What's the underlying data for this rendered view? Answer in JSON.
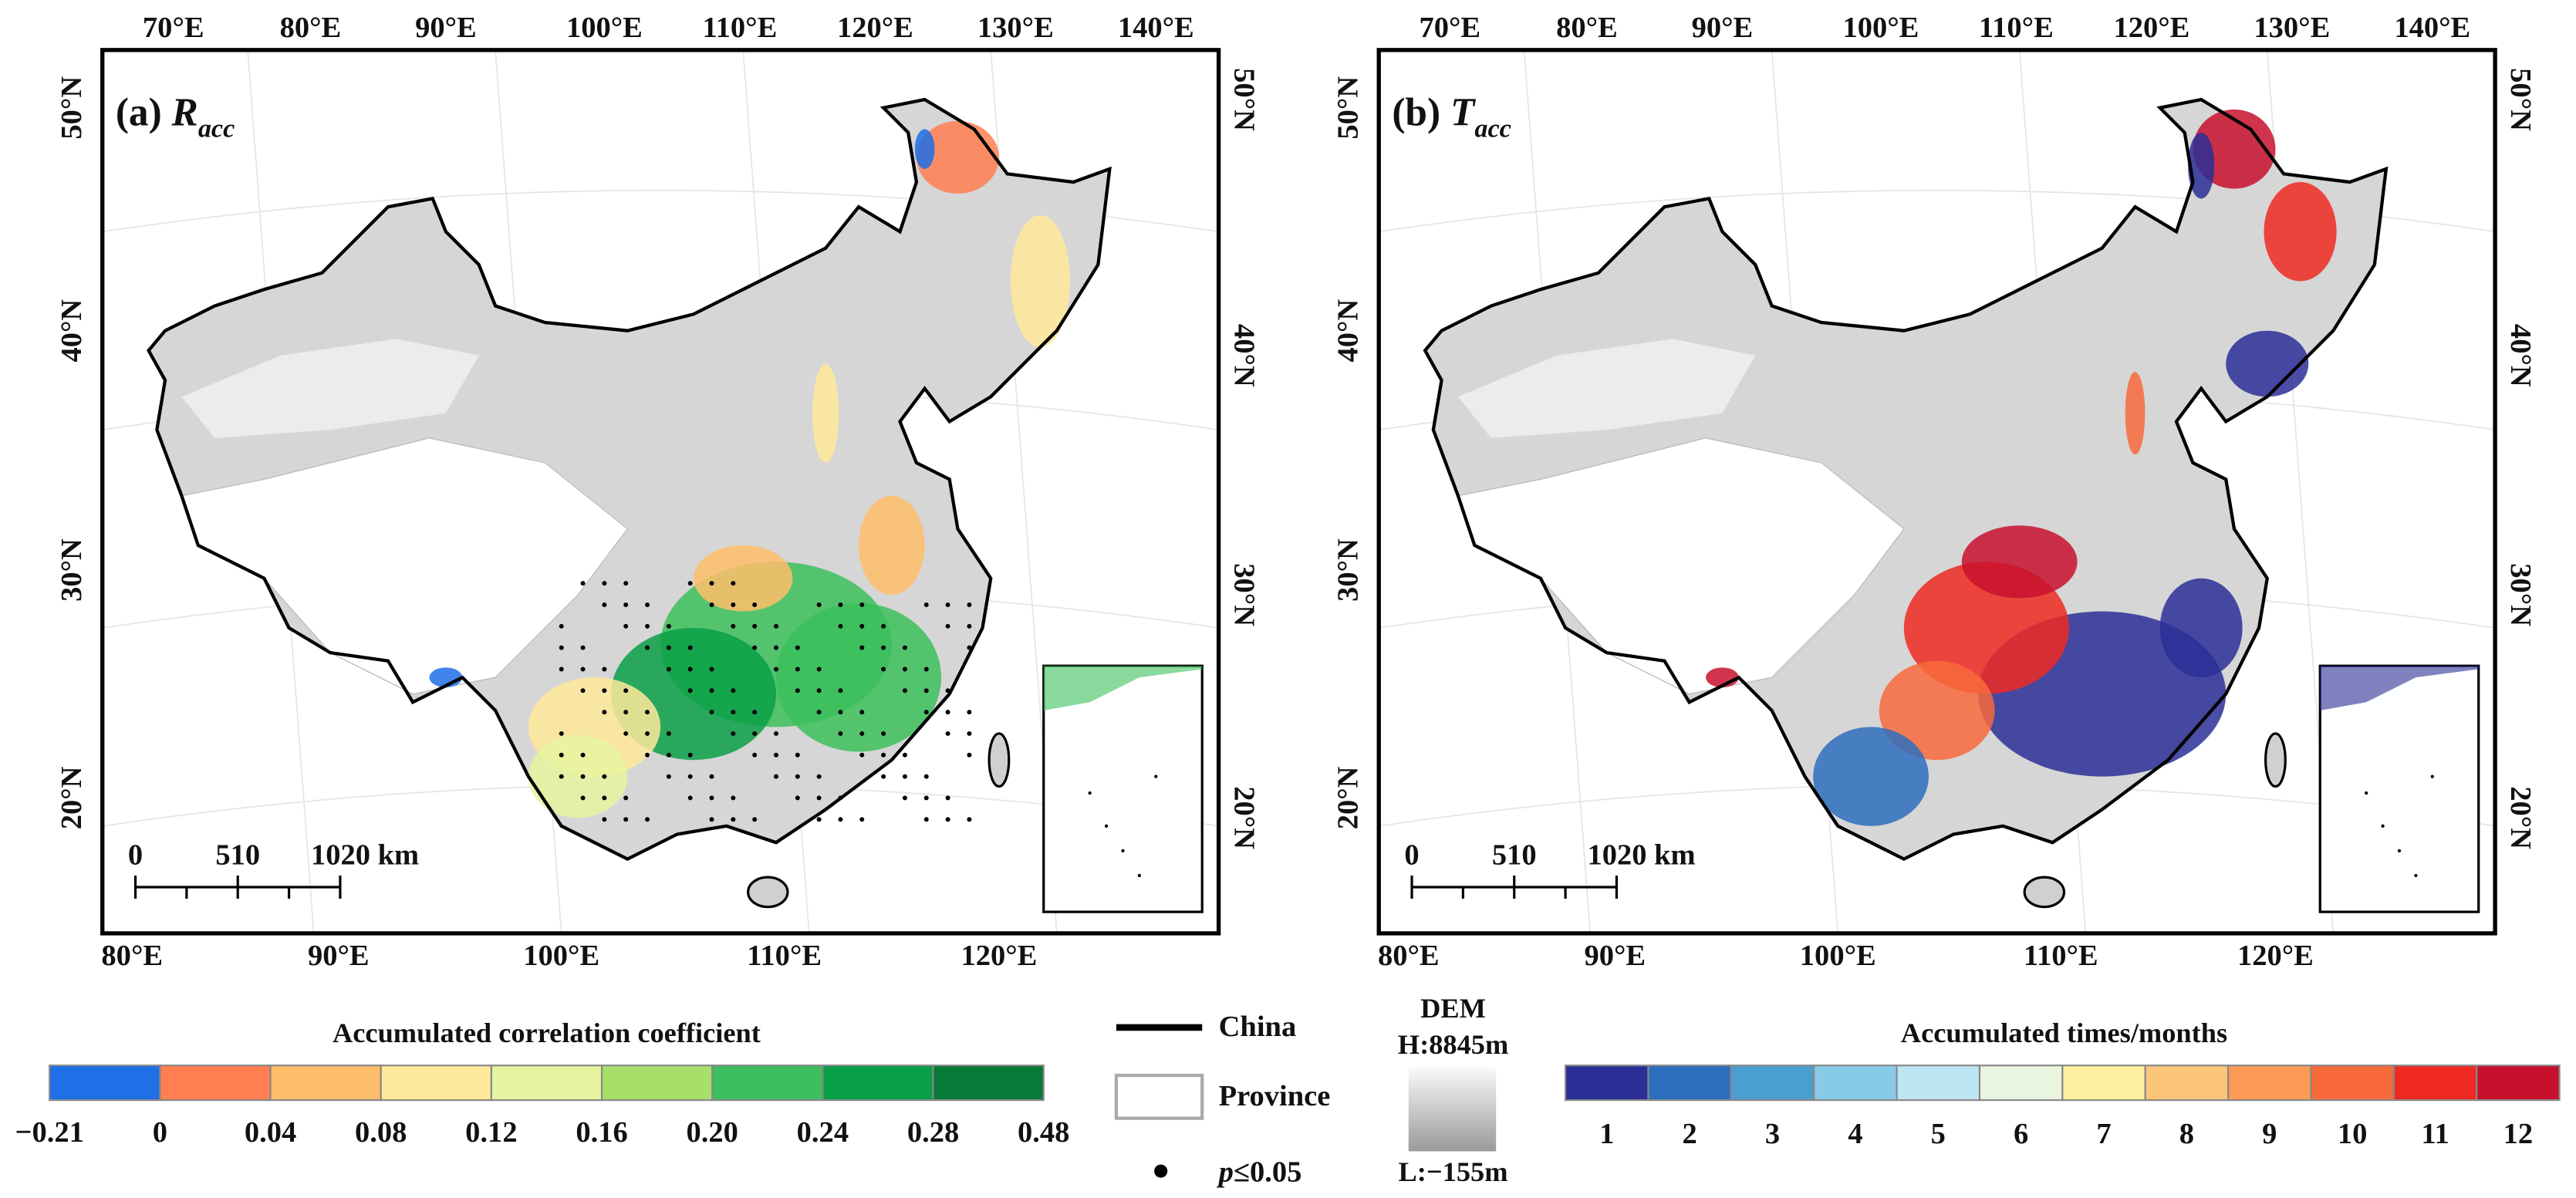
{
  "panels": [
    {
      "label": "(a)",
      "variable": "R",
      "subscript": "acc",
      "top_lon": [
        "70°E",
        "80°E",
        "90°E",
        "100°E",
        "110°E",
        "120°E",
        "130°E",
        "140°E"
      ],
      "left_lat": [
        "50°N",
        "40°N",
        "30°N",
        "20°N"
      ],
      "right_lat": [
        "50°N",
        "40°N",
        "30°N",
        "20°N"
      ],
      "bottom_lon": [
        "80°E",
        "90°E",
        "100°E",
        "110°E",
        "120°E"
      ],
      "scale_bar": [
        "0",
        "510",
        "1020 km"
      ]
    },
    {
      "label": "(b)",
      "variable": "T",
      "subscript": "acc",
      "top_lon": [
        "70°E",
        "80°E",
        "90°E",
        "100°E",
        "110°E",
        "120°E",
        "130°E",
        "140°E"
      ],
      "left_lat": [
        "50°N",
        "40°N",
        "30°N",
        "20°N"
      ],
      "right_lat": [
        "50°N",
        "40°N",
        "30°N",
        "20°N"
      ],
      "bottom_lon": [
        "80°E",
        "90°E",
        "100°E",
        "110°E",
        "120°E"
      ],
      "scale_bar": [
        "0",
        "510",
        "1020 km"
      ]
    }
  ],
  "legend_r": {
    "title": "Accumulated correlation coefficient",
    "colors": [
      "#1f6fe6",
      "#ff7f50",
      "#ffbe6a",
      "#ffe99a",
      "#e6f4a0",
      "#a8df6a",
      "#3cbf5c",
      "#0aa048",
      "#067a36"
    ],
    "labels": [
      "−0.21",
      "0",
      "0.04",
      "0.08",
      "0.12",
      "0.16",
      "0.20",
      "0.24",
      "0.28",
      "0.48"
    ]
  },
  "legend_key": {
    "china": "China",
    "province": "Province",
    "p_symbol": "p",
    "p_threshold": "≤0.05"
  },
  "dem": {
    "title": "DEM",
    "high": "H:8845m",
    "low": "L:−155m"
  },
  "legend_t": {
    "title": "Accumulated times/months",
    "colors": [
      "#2c2f96",
      "#2e6fbd",
      "#4a9fd0",
      "#88cbe8",
      "#bde6f3",
      "#eaf5e0",
      "#fff0a0",
      "#fdc57a",
      "#fb9a55",
      "#f86a3c",
      "#ee2a22",
      "#c8102e"
    ],
    "labels": [
      "1",
      "2",
      "3",
      "4",
      "5",
      "6",
      "7",
      "8",
      "9",
      "10",
      "11",
      "12"
    ]
  }
}
